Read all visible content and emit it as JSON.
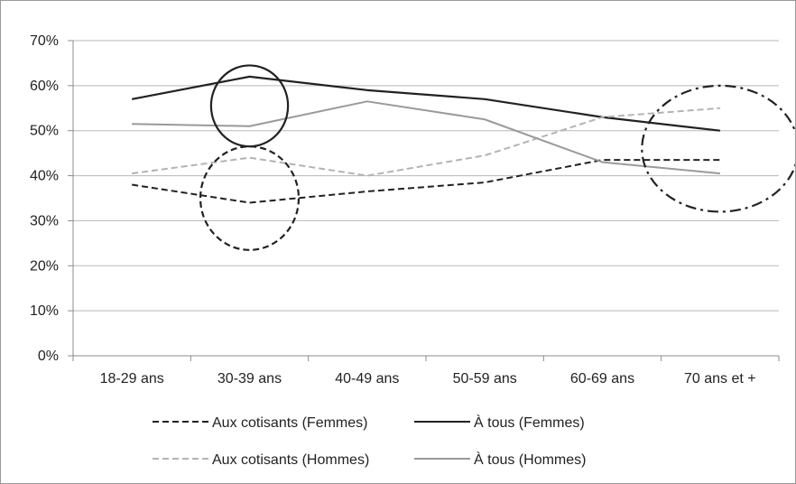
{
  "chart_data": {
    "type": "line",
    "categories": [
      "18-29 ans",
      "30-39 ans",
      "40-49 ans",
      "50-59 ans",
      "60-69 ans",
      "70 ans et +"
    ],
    "y_ticks": [
      "0%",
      "10%",
      "20%",
      "30%",
      "40%",
      "50%",
      "60%",
      "70%"
    ],
    "ylim": [
      0,
      70
    ],
    "grid": true,
    "legend_position": "bottom",
    "series": [
      {
        "name": "Aux cotisants (Femmes)",
        "values": [
          38,
          34,
          36.5,
          38.5,
          43.5,
          43.5
        ],
        "color": "#222222",
        "style": "dashed"
      },
      {
        "name": "À tous (Femmes)",
        "values": [
          57,
          62,
          59,
          57,
          53,
          50
        ],
        "color": "#222222",
        "style": "solid"
      },
      {
        "name": "Aux cotisants (Hommes)",
        "values": [
          40.5,
          44,
          40,
          44.5,
          53,
          55
        ],
        "color": "#b3b3b3",
        "style": "dashed"
      },
      {
        "name": "À tous (Hommes)",
        "values": [
          51.5,
          51,
          56.5,
          52.5,
          43,
          40.5
        ],
        "color": "#9a9a9a",
        "style": "solid"
      }
    ],
    "annotations": [
      {
        "shape": "circle",
        "style": "solid",
        "category_index": 1,
        "y_center": 55.5,
        "y_radius": 9,
        "color": "#222222"
      },
      {
        "shape": "circle",
        "style": "dashed",
        "category_index": 1,
        "y_center": 35,
        "y_radius": 11.5,
        "color": "#222222"
      },
      {
        "shape": "ellipse",
        "style": "dash-dot",
        "category_index": 5,
        "y_center": 46,
        "y_radius": 14,
        "color": "#222222"
      }
    ]
  }
}
